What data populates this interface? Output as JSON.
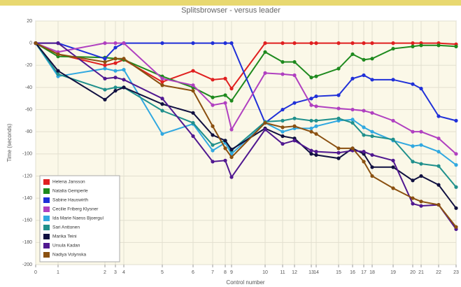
{
  "chart_data": {
    "type": "line",
    "title": "Splitsbrowser - versus leader",
    "x_label": "Control number",
    "y_label": "Time (seconds)",
    "x": [
      0,
      32,
      99,
      114,
      126,
      181,
      225,
      253,
      271,
      280,
      328,
      353,
      370,
      394,
      401,
      433,
      453,
      469,
      481,
      511,
      539,
      551,
      576,
      601
    ],
    "xlim": [
      0,
      601
    ],
    "xticks": [
      {
        "value": 0,
        "label": "0"
      },
      {
        "value": 32,
        "label": "1"
      },
      {
        "value": 99,
        "label": "2"
      },
      {
        "value": 114,
        "label": "3"
      },
      {
        "value": 126,
        "label": "4"
      },
      {
        "value": 181,
        "label": "5"
      },
      {
        "value": 225,
        "label": "6"
      },
      {
        "value": 253,
        "label": "7"
      },
      {
        "value": 271,
        "label": "8"
      },
      {
        "value": 280,
        "label": "9"
      },
      {
        "value": 328,
        "label": "10"
      },
      {
        "value": 353,
        "label": "11"
      },
      {
        "value": 370,
        "label": "12"
      },
      {
        "value": 394,
        "label": "13"
      },
      {
        "value": 401,
        "label": "14"
      },
      {
        "value": 433,
        "label": "15"
      },
      {
        "value": 453,
        "label": "16"
      },
      {
        "value": 469,
        "label": "17"
      },
      {
        "value": 481,
        "label": "18"
      },
      {
        "value": 511,
        "label": "19"
      },
      {
        "value": 539,
        "label": "20"
      },
      {
        "value": 551,
        "label": "21"
      },
      {
        "value": 576,
        "label": "22"
      },
      {
        "value": 601,
        "label": "23"
      }
    ],
    "ylim": [
      -200,
      20
    ],
    "yticks": [
      -200,
      -180,
      -160,
      -140,
      -120,
      -100,
      -80,
      -60,
      -40,
      -20,
      0,
      20
    ],
    "grid": true,
    "legend": "bottom-left",
    "series": [
      {
        "name": "Helena Jansson",
        "color": "#e02020",
        "values": [
          0,
          -10,
          -20,
          -18,
          -15,
          -35,
          -25,
          -33,
          -32,
          -41,
          0,
          0,
          0,
          0,
          0,
          0,
          0,
          0,
          0,
          0,
          0,
          0,
          0,
          -1
        ]
      },
      {
        "name": "Natalia Gemperle",
        "color": "#1e8a1e",
        "values": [
          0,
          -12,
          -13,
          -14,
          -15,
          -30,
          -40,
          -49,
          -47,
          -52,
          -8,
          -17,
          -17,
          -31,
          -30,
          -23,
          -10,
          -15,
          -14,
          -5,
          -3,
          -2,
          -2,
          -3
        ]
      },
      {
        "name": "Sabine Hauswirth",
        "color": "#2030d8",
        "values": [
          0,
          0,
          -14,
          -4,
          0,
          0,
          0,
          0,
          0,
          0,
          -72,
          -60,
          -54,
          -50,
          -48,
          -47,
          -32,
          -29,
          -33,
          -33,
          -37,
          -41,
          -66,
          -70
        ]
      },
      {
        "name": "Cecilie Friberg Klysner",
        "color": "#b040c0",
        "values": [
          0,
          -8,
          0,
          0,
          0,
          -32,
          -38,
          -56,
          -54,
          -78,
          -27,
          -28,
          -29,
          -56,
          -57,
          -59,
          -60,
          -61,
          -63,
          -70,
          -80,
          -80,
          -86,
          -100
        ]
      },
      {
        "name": "Ida Marie Naess Bjoergul",
        "color": "#30a8e0",
        "values": [
          0,
          -30,
          -23,
          -25,
          -24,
          -82,
          -73,
          -97,
          -90,
          -100,
          -72,
          -80,
          -77,
          -77,
          -75,
          -70,
          -69,
          -76,
          -80,
          -88,
          -93,
          -92,
          -98,
          -110
        ]
      },
      {
        "name": "Sari Anttonen",
        "color": "#20908c",
        "values": [
          0,
          -28,
          -42,
          -40,
          -40,
          -61,
          -72,
          -92,
          -88,
          -97,
          -71,
          -70,
          -68,
          -70,
          -70,
          -68,
          -72,
          -83,
          -84,
          -87,
          -107,
          -109,
          -111,
          -130
        ]
      },
      {
        "name": "Marika Teini",
        "color": "#101040",
        "values": [
          0,
          -25,
          -51,
          -43,
          -40,
          -55,
          -63,
          -83,
          -88,
          -96,
          -77,
          -84,
          -86,
          -100,
          -101,
          -104,
          -95,
          -100,
          -112,
          -112,
          -124,
          -120,
          -128,
          -149
        ]
      },
      {
        "name": "Ursula Kadan",
        "color": "#501890",
        "values": [
          0,
          0,
          -32,
          -31,
          -33,
          -50,
          -84,
          -107,
          -106,
          -121,
          -78,
          -91,
          -88,
          -97,
          -98,
          -99,
          -97,
          -98,
          -101,
          -106,
          -145,
          -147,
          -146,
          -168
        ]
      },
      {
        "name": "Nadiya Volynska",
        "color": "#8a5010",
        "values": [
          0,
          -10,
          -17,
          -14,
          -14,
          -38,
          -43,
          -75,
          -95,
          -103,
          -72,
          -76,
          -75,
          -80,
          -82,
          -95,
          -95,
          -107,
          -120,
          -131,
          -140,
          -143,
          -146,
          -166
        ]
      }
    ]
  }
}
